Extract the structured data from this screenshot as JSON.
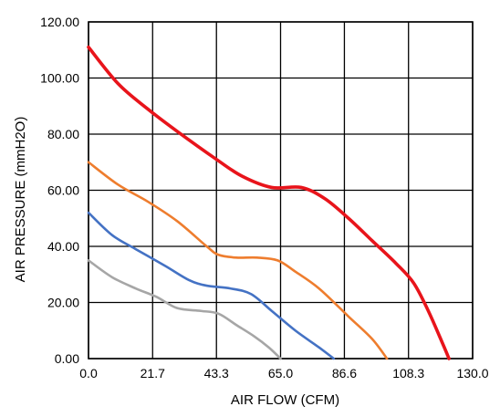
{
  "chart_data": {
    "type": "line",
    "xlabel": "AIR FLOW  (CFM)",
    "ylabel": "AIR PRESSURE  (mmH2O)",
    "xlim": [
      0,
      130
    ],
    "ylim": [
      0,
      120
    ],
    "x_ticks": [
      "0.0",
      "21.7",
      "43.3",
      "65.0",
      "86.6",
      "108.3",
      "130.0"
    ],
    "x_tick_values": [
      0,
      21.7,
      43.3,
      65.0,
      86.6,
      108.3,
      130.0
    ],
    "y_ticks": [
      "0.00",
      "20.00",
      "40.00",
      "60.00",
      "80.00",
      "100.00",
      "120.00"
    ],
    "y_tick_values": [
      0,
      20,
      40,
      60,
      80,
      100,
      120
    ],
    "grid": true,
    "series": [
      {
        "color": "#e8141b",
        "points": [
          [
            0,
            111
          ],
          [
            10,
            98
          ],
          [
            20,
            89
          ],
          [
            30,
            81
          ],
          [
            43.3,
            71
          ],
          [
            52,
            65
          ],
          [
            62,
            61
          ],
          [
            72,
            61
          ],
          [
            80,
            57
          ],
          [
            88,
            50
          ],
          [
            96,
            42
          ],
          [
            104,
            34
          ],
          [
            110,
            27
          ],
          [
            115,
            17
          ],
          [
            120,
            5
          ],
          [
            122,
            0
          ]
        ]
      },
      {
        "color": "#ee7d2e",
        "points": [
          [
            0,
            70
          ],
          [
            10,
            62
          ],
          [
            20,
            56
          ],
          [
            30,
            49
          ],
          [
            40,
            40
          ],
          [
            44,
            37
          ],
          [
            50,
            36
          ],
          [
            57,
            36
          ],
          [
            64,
            35
          ],
          [
            70,
            31
          ],
          [
            78,
            25
          ],
          [
            88,
            15
          ],
          [
            96,
            7
          ],
          [
            101,
            0
          ]
        ]
      },
      {
        "color": "#4472c4",
        "points": [
          [
            0,
            52
          ],
          [
            8,
            44
          ],
          [
            16,
            39
          ],
          [
            26,
            33
          ],
          [
            34,
            28
          ],
          [
            40,
            26
          ],
          [
            48,
            25
          ],
          [
            55,
            23
          ],
          [
            62,
            17
          ],
          [
            70,
            10
          ],
          [
            78,
            4
          ],
          [
            83,
            0
          ]
        ]
      },
      {
        "color": "#a6a6a6",
        "points": [
          [
            0,
            35
          ],
          [
            8,
            29
          ],
          [
            16,
            25
          ],
          [
            23,
            22
          ],
          [
            30,
            18
          ],
          [
            38,
            17
          ],
          [
            44,
            16
          ],
          [
            50,
            12
          ],
          [
            56,
            8
          ],
          [
            61,
            4
          ],
          [
            65,
            0
          ]
        ]
      }
    ]
  }
}
